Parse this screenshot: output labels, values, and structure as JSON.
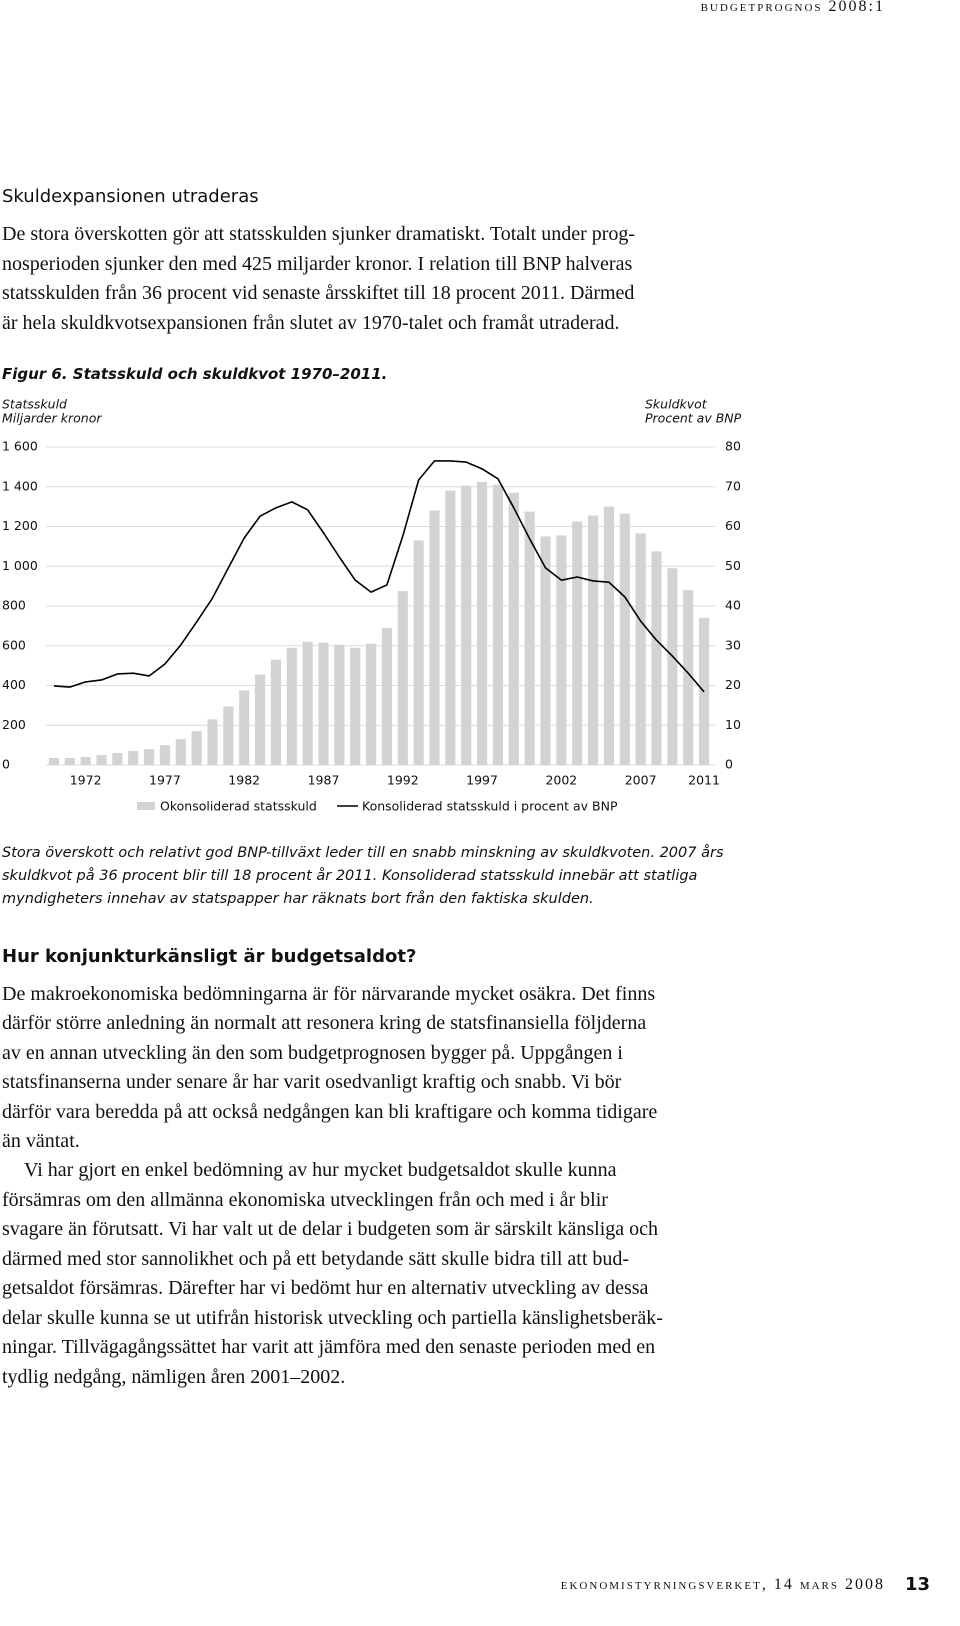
{
  "header": {
    "running_title": "budgetprognos 2008:1"
  },
  "section1": {
    "heading": "Skuldexpansionen utraderas",
    "paragraph": [
      "De stora överskotten gör att statsskulden sjunker dramatiskt. Totalt under prog-",
      "nosperioden sjunker den med 425 miljarder kronor. I relation till BNP halveras",
      "statsskulden från 36 procent vid senaste årsskiftet till 18 procent 2011. Därmed",
      "är hela skuldkvotsexpansionen från slutet av 1970-talet och framåt utraderad."
    ]
  },
  "figure": {
    "caption": "Figur 6. Statsskuld och skuldkvot 1970–2011.",
    "note": [
      "Stora överskott och relativt god BNP-tillväxt leder till en snabb minskning av skuldkvoten. 2007 års",
      "skuldkvot på 36 procent blir till 18 procent år 2011. Konsoliderad statsskuld innebär att statliga",
      "myndigheters innehav av statspapper har räknats bort från den faktiska skulden."
    ]
  },
  "chart_data": {
    "type": "bar",
    "ylabel": "Statsskuld",
    "ylabel_unit": "Miljarder kronor",
    "y2label": "Skuldkvot",
    "y2label_unit": "Procent av BNP",
    "x": [
      1970,
      1971,
      1972,
      1973,
      1974,
      1975,
      1976,
      1977,
      1978,
      1979,
      1980,
      1981,
      1982,
      1983,
      1984,
      1985,
      1986,
      1987,
      1988,
      1989,
      1990,
      1991,
      1992,
      1993,
      1994,
      1995,
      1996,
      1997,
      1998,
      1999,
      2000,
      2001,
      2002,
      2003,
      2004,
      2005,
      2006,
      2007,
      2008,
      2009,
      2010,
      2011
    ],
    "xlim": [
      1969.5,
      2011.5
    ],
    "xticks": [
      1972,
      1977,
      1982,
      1987,
      1992,
      1997,
      2002,
      2007,
      2011
    ],
    "ylim": [
      0,
      1600
    ],
    "yticks": [
      0,
      200,
      400,
      600,
      800,
      {
        "value": 1000,
        "label": "1 000"
      },
      {
        "value": 1200,
        "label": "1 200"
      },
      {
        "value": 1400,
        "label": "1 400"
      },
      {
        "value": 1600,
        "label": "1 600"
      }
    ],
    "y2lim": [
      0,
      80
    ],
    "y2ticks": [
      0,
      10,
      20,
      30,
      40,
      50,
      60,
      70,
      80
    ],
    "grid": true,
    "legend": "bottom",
    "series": [
      {
        "name": "Okonsoliderad statsskuld",
        "type": "bar",
        "color": "#d3d3d3",
        "values": [
          35,
          35,
          40,
          50,
          60,
          70,
          80,
          100,
          130,
          170,
          230,
          295,
          375,
          455,
          530,
          590,
          620,
          615,
          605,
          590,
          610,
          690,
          875,
          1130,
          1280,
          1380,
          1405,
          1425,
          1410,
          1370,
          1275,
          1150,
          1155,
          1225,
          1255,
          1300,
          1265,
          1165,
          1075,
          990,
          880,
          740
        ]
      },
      {
        "name": "Konsoliderad statsskuld i procent av BNP",
        "type": "line",
        "color": "#000000",
        "axis": "y2",
        "values": [
          19.9,
          19.6,
          20.9,
          21.4,
          22.9,
          23.1,
          22.4,
          25.4,
          30.2,
          36,
          42,
          49.6,
          57.1,
          62.6,
          64.7,
          66.2,
          64.2,
          58.4,
          52.3,
          46.5,
          43.5,
          45.3,
          57.6,
          71.7,
          76.5,
          76.5,
          76.2,
          74.5,
          72,
          64.7,
          56.9,
          49.6,
          46.5,
          47.3,
          46.3,
          46,
          42.3,
          36.2,
          31.4,
          27.4,
          23.1,
          18.4
        ]
      }
    ]
  },
  "section2": {
    "heading": "Hur konjunkturkänsligt är budgetsaldot?",
    "paragraphs": [
      [
        "De makroekonomiska bedömningarna är för närvarande mycket osäkra. Det finns",
        "därför större anledning än normalt att resonera kring de statsfinansiella följderna",
        "av en annan utveckling än den som budgetprognosen bygger på. Uppgången i",
        "statsfinanserna under senare år har varit osedvanligt kraftig och snabb. Vi bör",
        "därför vara beredda på att också nedgången kan bli kraftigare och komma tidigare",
        "än väntat."
      ],
      [
        "Vi har gjort en enkel bedömning av hur mycket budgetsaldot skulle kunna",
        "försämras om den allmänna ekonomiska utvecklingen från och med i år blir",
        "svagare än förutsatt. Vi har valt ut de delar i budgeten som är särskilt känsliga och",
        "därmed med stor sannolikhet och på ett betydande sätt skulle bidra till att bud-",
        "getsaldot försämras. Därefter har vi bedömt hur en alternativ utveckling av dessa",
        "delar skulle kunna se ut utifrån historisk utveckling och partiella känslighetsberäk-",
        "ningar. Tillvägagångssättet har varit att jämföra med den senaste perioden med en",
        "tydlig nedgång, nämligen åren 2001–2002."
      ]
    ]
  },
  "footer": {
    "publisher": "ekonomistyrningsverket, 14 mars 2008",
    "page_number": "13"
  }
}
